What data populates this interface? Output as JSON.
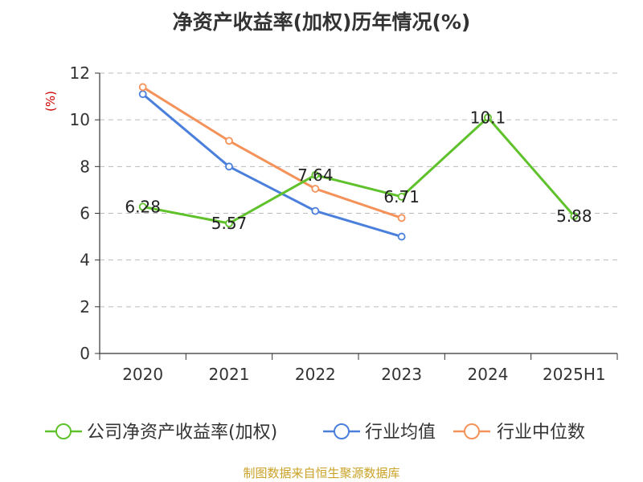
{
  "chart_data": {
    "type": "line",
    "title": "净资产收益率(加权)历年情况(%)",
    "ylabel": "(%)",
    "categories": [
      "2020",
      "2021",
      "2022",
      "2023",
      "2024",
      "2025H1"
    ],
    "ylim": [
      0,
      12
    ],
    "yticks": [
      "0",
      "2",
      "4",
      "6",
      "8",
      "10",
      "12"
    ],
    "grid": true,
    "legend_position": "bottom",
    "series": [
      {
        "name": "公司净资产收益率(加权)",
        "color": "#5fc12b",
        "values": [
          6.28,
          5.57,
          7.64,
          6.71,
          10.1,
          5.88
        ],
        "labels": [
          "6.28",
          "5.57",
          "7.64",
          "6.71",
          "10.1",
          "5.88"
        ]
      },
      {
        "name": "行业均值",
        "color": "#4a7fdb",
        "values": [
          11.1,
          8.0,
          6.1,
          5.0,
          null,
          null
        ]
      },
      {
        "name": "行业中位数",
        "color": "#f5925a",
        "values": [
          11.4,
          9.1,
          7.05,
          5.8,
          null,
          null
        ]
      }
    ]
  },
  "source": "制图数据来自恒生聚源数据库"
}
